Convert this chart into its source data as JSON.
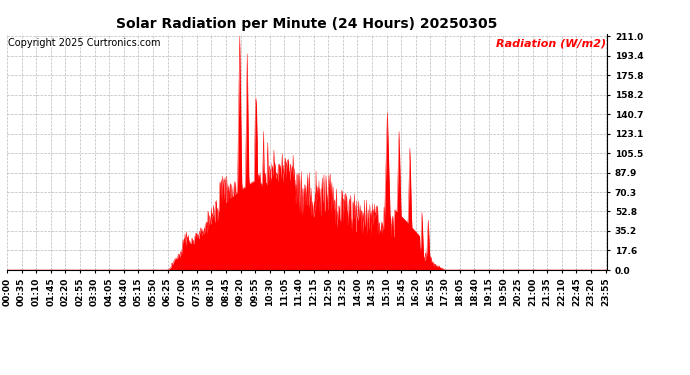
{
  "title": "Solar Radiation per Minute (24 Hours) 20250305",
  "copyright": "Copyright 2025 Curtronics.com",
  "legend_label": "Radiation (W/m2)",
  "background_color": "#ffffff",
  "plot_bg_color": "#ffffff",
  "fill_color": "#ff0000",
  "line_color": "#ff0000",
  "zero_line_color": "#ff0000",
  "grid_color": "#aaaaaa",
  "title_color": "#000000",
  "copyright_color": "#000000",
  "legend_color": "#ff0000",
  "yticks": [
    0.0,
    17.6,
    35.2,
    52.8,
    70.3,
    87.9,
    105.5,
    123.1,
    140.7,
    158.2,
    175.8,
    193.4,
    211.0
  ],
  "ymax": 211.0,
  "ymin": 0.0,
  "total_minutes": 1440,
  "xtick_interval": 35,
  "title_fontsize": 10,
  "copyright_fontsize": 7,
  "legend_fontsize": 8,
  "tick_fontsize": 6.5
}
